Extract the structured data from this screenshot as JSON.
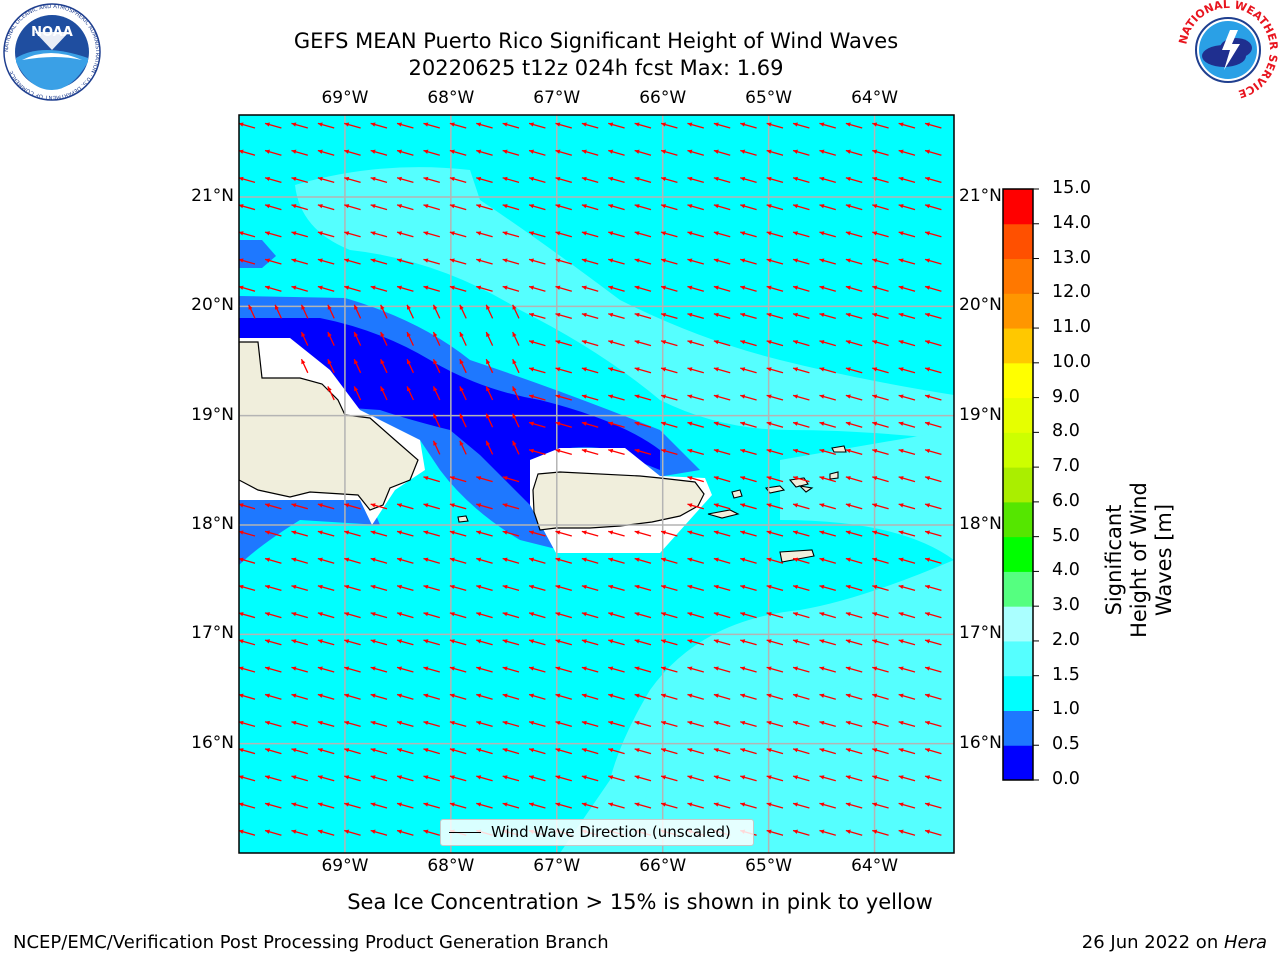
{
  "header": {
    "title_line1": "GEFS MEAN Puerto Rico Significant Height of Wind Waves",
    "title_line2": "20220625 t12z 024h fcst   Max: 1.69"
  },
  "map": {
    "lon_ticks": [
      "69°W",
      "68°W",
      "67°W",
      "66°W",
      "65°W",
      "64°W"
    ],
    "lat_ticks": [
      "21°N",
      "20°N",
      "19°N",
      "18°N",
      "17°N",
      "16°N"
    ],
    "lon_range": [
      -70,
      -63.25
    ],
    "lat_range": [
      15.0,
      21.75
    ],
    "arrow_direction": "north-west",
    "arrow_color": "#ff0000",
    "land_color": "#f0eedc"
  },
  "legend": {
    "label": "Wind Wave Direction (unscaled)"
  },
  "colorbar": {
    "title": "Significant Height of Wind Waves [m]",
    "levels": [
      "0.0",
      "0.5",
      "1.0",
      "1.5",
      "2.0",
      "3.0",
      "4.0",
      "5.0",
      "6.0",
      "7.0",
      "8.0",
      "9.0",
      "10.0",
      "11.0",
      "12.0",
      "13.0",
      "14.0",
      "15.0"
    ],
    "colors": [
      "#0000ff",
      "#1e78ff",
      "#00ffff",
      "#55ffff",
      "#aaffff",
      "#55ff80",
      "#00ff00",
      "#55e600",
      "#aaee00",
      "#cdff00",
      "#e6ff00",
      "#ffff00",
      "#ffc800",
      "#ff9600",
      "#ff7800",
      "#ff5000",
      "#ff0000"
    ]
  },
  "notes": {
    "sea_ice": "Sea Ice Concentration > 15% is shown in pink to yellow"
  },
  "footer": {
    "left": "NCEP/EMC/Verification Post Processing Product Generation Branch",
    "date": "26 Jun 2022 on ",
    "host": "Hera"
  },
  "logos": {
    "noaa_text": "NOAA",
    "noaa_ring_text": "NATIONAL OCEANIC AND ATMOSPHERIC ADMINISTRATION · U.S. DEPARTMENT OF COMMERCE",
    "nws_ring_text": "NATIONAL WEATHER SERVICE"
  }
}
